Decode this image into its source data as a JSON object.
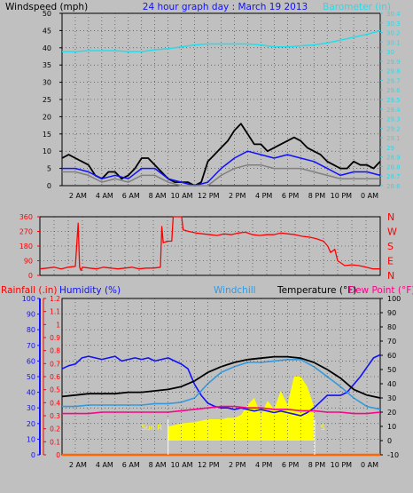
{
  "chart_data": [
    {
      "id": "wind",
      "type": "line",
      "title": "24 hour graph day : March 19 2013",
      "ylabel_left": "Windspeed (mph)",
      "ylabel_right": "Barometer (in)",
      "x_ticks": [
        "2 AM",
        "4 AM",
        "6 AM",
        "8 AM",
        "10 AM",
        "12 PM",
        "2 PM",
        "4 PM",
        "6 PM",
        "8 PM",
        "10 PM",
        "0 AM"
      ],
      "xlim": [
        0,
        24
      ],
      "ylim_left": [
        0,
        50
      ],
      "yticks_left": [
        0,
        5,
        10,
        15,
        20,
        25,
        30,
        35,
        40,
        45,
        50
      ],
      "ylim_right": [
        28.6,
        30.4
      ],
      "yticks_right": [
        "28.6",
        "28.7",
        "28.8",
        "28.9",
        "29",
        "29.1",
        "29.2",
        "29.3",
        "29.4",
        "29.5",
        "29.6",
        "29.7",
        "29.8",
        "29.9",
        "30",
        "30.1",
        "30.2",
        "30.3",
        "30.4"
      ],
      "grid": true,
      "series": [
        {
          "name": "Windspeed (mph)",
          "color": "#000000",
          "axis": "left",
          "x": [
            0,
            0.5,
            1,
            1.5,
            2,
            2.5,
            3,
            3.5,
            4,
            4.5,
            5,
            5.5,
            6,
            6.5,
            7,
            7.5,
            8,
            8.5,
            9,
            9.5,
            10,
            10.5,
            11,
            11.5,
            12,
            12.5,
            13,
            13.5,
            14,
            14.5,
            15,
            15.5,
            16,
            16.5,
            17,
            17.5,
            18,
            18.5,
            19,
            19.5,
            20,
            20.5,
            21,
            21.5,
            22,
            22.5,
            23,
            23.5,
            24
          ],
          "values": [
            8,
            9,
            8,
            7,
            6,
            3,
            2,
            4,
            4,
            2,
            3,
            5,
            8,
            8,
            6,
            4,
            2,
            1,
            1,
            1,
            0,
            1,
            7,
            9,
            11,
            13,
            16,
            18,
            15,
            12,
            12,
            10,
            11,
            12,
            13,
            14,
            13,
            11,
            10,
            9,
            7,
            6,
            5,
            5,
            7,
            6,
            6,
            5,
            7
          ]
        },
        {
          "name": "Wind gust",
          "color": "#1010ff",
          "axis": "left",
          "x": [
            0,
            1,
            2,
            3,
            4,
            5,
            6,
            7,
            8,
            9,
            10,
            11,
            12,
            13,
            14,
            15,
            16,
            17,
            18,
            19,
            20,
            21,
            22,
            23,
            24
          ],
          "values": [
            5,
            5,
            4,
            2,
            3,
            2,
            5,
            5,
            2,
            1,
            0,
            1,
            5,
            8,
            10,
            9,
            8,
            9,
            8,
            7,
            5,
            3,
            4,
            4,
            3
          ]
        },
        {
          "name": "Wind average",
          "color": "#808080",
          "axis": "left",
          "x": [
            0,
            1,
            2,
            3,
            4,
            5,
            6,
            7,
            8,
            9,
            10,
            11,
            12,
            13,
            14,
            15,
            16,
            17,
            18,
            19,
            20,
            21,
            22,
            23,
            24
          ],
          "values": [
            4,
            4,
            3,
            1,
            2,
            1,
            3,
            3,
            1,
            0,
            0,
            0,
            3,
            5,
            6,
            6,
            5,
            5,
            5,
            4,
            3,
            2,
            2,
            2,
            2
          ]
        },
        {
          "name": "Barometer (in)",
          "color": "#22ddee",
          "axis": "right",
          "x": [
            0,
            1,
            2,
            3,
            4,
            5,
            6,
            7,
            8,
            9,
            10,
            11,
            12,
            13,
            14,
            15,
            16,
            17,
            18,
            19,
            20,
            21,
            22,
            23,
            24
          ],
          "values": [
            30.0,
            30.0,
            30.01,
            30.01,
            30.01,
            30.0,
            30.0,
            30.02,
            30.03,
            30.05,
            30.07,
            30.08,
            30.08,
            30.08,
            30.08,
            30.07,
            30.05,
            30.05,
            30.06,
            30.07,
            30.09,
            30.12,
            30.15,
            30.18,
            30.22
          ]
        }
      ]
    },
    {
      "id": "direction",
      "type": "line",
      "ylabel_right": [
        "N",
        "W",
        "S",
        "E",
        "N"
      ],
      "xlim": [
        0,
        24
      ],
      "ylim": [
        0,
        360
      ],
      "yticks": [
        0,
        90,
        180,
        270,
        360
      ],
      "grid": true,
      "series": [
        {
          "name": "Wind direction",
          "color": "#ff0000",
          "x": [
            0,
            0.5,
            1,
            1.5,
            2,
            2.5,
            2.7,
            2.8,
            2.9,
            3.0,
            3.5,
            4,
            4.5,
            5,
            5.5,
            6,
            6.5,
            7,
            7.5,
            8,
            8.5,
            8.6,
            8.7,
            9,
            9.3,
            9.4,
            10,
            10.1,
            10.5,
            11,
            11.5,
            12,
            12.5,
            13,
            13.5,
            14,
            14.5,
            15,
            15.5,
            16,
            16.5,
            17,
            17.5,
            18,
            18.5,
            19,
            19.5,
            20,
            20.3,
            20.5,
            20.8,
            21,
            21.5,
            22,
            22.5,
            23,
            23.5,
            24
          ],
          "values": [
            40,
            45,
            50,
            40,
            50,
            55,
            320,
            50,
            30,
            50,
            45,
            40,
            50,
            45,
            40,
            45,
            50,
            40,
            45,
            45,
            50,
            300,
            200,
            210,
            210,
            360,
            360,
            280,
            270,
            260,
            255,
            250,
            245,
            255,
            250,
            260,
            265,
            250,
            245,
            250,
            250,
            260,
            255,
            250,
            240,
            235,
            225,
            210,
            180,
            140,
            160,
            90,
            60,
            65,
            60,
            50,
            40,
            40
          ]
        }
      ]
    },
    {
      "id": "temp",
      "type": "line",
      "ylabel_left1": "Rainfall (.in)",
      "ylabel_left2": "Humidity (%)",
      "label_windchill": "Windchill",
      "ylabel_right": "Temperature (°F)",
      "label_dewpoint": "Dew Point (°F)",
      "annotation": "Sun R",
      "annotation_right": "S",
      "xlim": [
        0,
        24
      ],
      "ylim_rain": [
        0,
        1.2
      ],
      "yticks_rain": [
        "0",
        "0.1",
        "0.2",
        "0.3",
        "0.4",
        "0.5",
        "0.6",
        "0.7",
        "0.8",
        "0.9",
        "1",
        "1.1",
        "1.2"
      ],
      "ylim_hum": [
        0,
        100
      ],
      "yticks_hum": [
        0,
        10,
        20,
        30,
        40,
        50,
        60,
        70,
        80,
        90,
        100
      ],
      "ylim_temp": [
        -10,
        100
      ],
      "yticks_temp": [
        -10,
        0,
        10,
        20,
        30,
        40,
        50,
        60,
        70,
        80,
        90,
        100
      ],
      "grid": true,
      "series": [
        {
          "name": "Solar radiation",
          "color": "#ffff00",
          "type": "area",
          "axis": "temp",
          "x": [
            0,
            8.0,
            8.05,
            9,
            10,
            10.5,
            11,
            11.5,
            12,
            12.5,
            13,
            13.5,
            14,
            14.5,
            15,
            15.5,
            16,
            16.5,
            17,
            17.5,
            18,
            18.5,
            19,
            19.05,
            24
          ],
          "values": [
            0,
            0,
            10,
            12,
            13,
            14,
            15,
            15,
            15,
            16,
            16,
            18,
            25,
            30,
            18,
            28,
            22,
            35,
            25,
            45,
            45,
            38,
            24,
            0,
            0
          ]
        },
        {
          "name": "Rainfall (.in)",
          "color": "#ff6600",
          "axis": "rain",
          "x": [
            0,
            24
          ],
          "values": [
            0,
            0
          ]
        },
        {
          "name": "Humidity (%)",
          "color": "#1010ff",
          "axis": "hum",
          "x": [
            0,
            0.5,
            1,
            1.5,
            2,
            2.5,
            3,
            3.5,
            4,
            4.5,
            5,
            5.5,
            6,
            6.5,
            7,
            7.5,
            8,
            8.5,
            9,
            9.5,
            10,
            10.5,
            11,
            11.5,
            12,
            12.5,
            13,
            13.5,
            14,
            14.5,
            15,
            15.5,
            16,
            16.5,
            17,
            17.5,
            18,
            18.5,
            19,
            19.5,
            20,
            20.5,
            21,
            21.5,
            22,
            22.5,
            23,
            23.5,
            24
          ],
          "values": [
            55,
            57,
            58,
            62,
            63,
            62,
            61,
            62,
            63,
            60,
            61,
            62,
            61,
            62,
            60,
            61,
            62,
            60,
            58,
            55,
            45,
            38,
            33,
            31,
            30,
            30,
            29,
            30,
            29,
            28,
            29,
            28,
            27,
            28,
            27,
            26,
            25,
            27,
            30,
            34,
            38,
            38,
            38,
            40,
            45,
            50,
            56,
            62,
            64
          ]
        },
        {
          "name": "Windchill",
          "color": "#3399dd",
          "axis": "temp",
          "x": [
            0,
            1,
            2,
            3,
            4,
            5,
            6,
            7,
            8,
            9,
            10,
            11,
            12,
            13,
            14,
            15,
            16,
            17,
            18,
            19,
            20,
            21,
            22,
            23,
            24
          ],
          "values": [
            24,
            24,
            25,
            25,
            25,
            25,
            25,
            26,
            26,
            27,
            30,
            40,
            48,
            52,
            55,
            55,
            56,
            57,
            57,
            52,
            45,
            38,
            30,
            24,
            22
          ]
        },
        {
          "name": "Temperature (°F)",
          "color": "#000000",
          "axis": "temp",
          "x": [
            0,
            1,
            2,
            3,
            4,
            5,
            6,
            7,
            8,
            9,
            10,
            11,
            12,
            13,
            14,
            15,
            16,
            17,
            18,
            19,
            20,
            21,
            22,
            23,
            24
          ],
          "values": [
            31,
            32,
            33,
            33,
            33,
            34,
            34,
            35,
            36,
            38,
            42,
            48,
            52,
            55,
            57,
            58,
            59,
            59,
            58,
            55,
            50,
            44,
            36,
            32,
            30
          ]
        },
        {
          "name": "Dew Point (°F)",
          "color": "#ff0088",
          "axis": "temp",
          "x": [
            0,
            1,
            2,
            3,
            4,
            5,
            6,
            7,
            8,
            9,
            10,
            11,
            12,
            13,
            14,
            15,
            16,
            17,
            18,
            19,
            20,
            21,
            22,
            23,
            24
          ],
          "values": [
            19,
            19,
            19,
            20,
            20,
            20,
            20,
            20,
            20,
            21,
            22,
            23,
            24,
            24,
            23,
            23,
            22,
            22,
            21,
            21,
            20,
            20,
            19,
            19,
            20
          ]
        }
      ]
    }
  ]
}
